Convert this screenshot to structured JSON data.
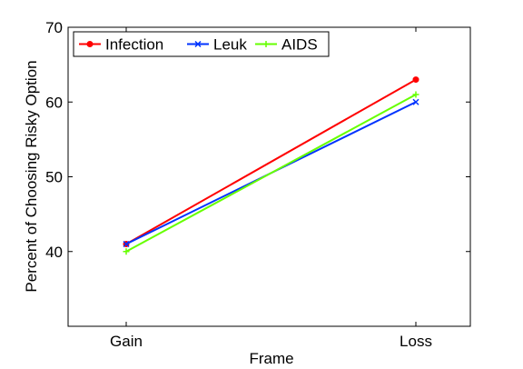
{
  "chart_data": {
    "type": "line",
    "xlabel": "Frame",
    "ylabel": "Percent of Choosing Risky Option",
    "categories": [
      "Gain",
      "Loss"
    ],
    "ylim": [
      30,
      70
    ],
    "yticks": [
      40,
      50,
      60,
      70
    ],
    "grid": false,
    "legend_position": "top-left",
    "series": [
      {
        "name": "Infection",
        "values": [
          41,
          63
        ],
        "color": "#ff0000",
        "marker": "circle"
      },
      {
        "name": "Leuk",
        "values": [
          41,
          60
        ],
        "color": "#0033ff",
        "marker": "x"
      },
      {
        "name": "AIDS",
        "values": [
          40,
          61
        ],
        "color": "#66ff00",
        "marker": "plus"
      }
    ]
  }
}
